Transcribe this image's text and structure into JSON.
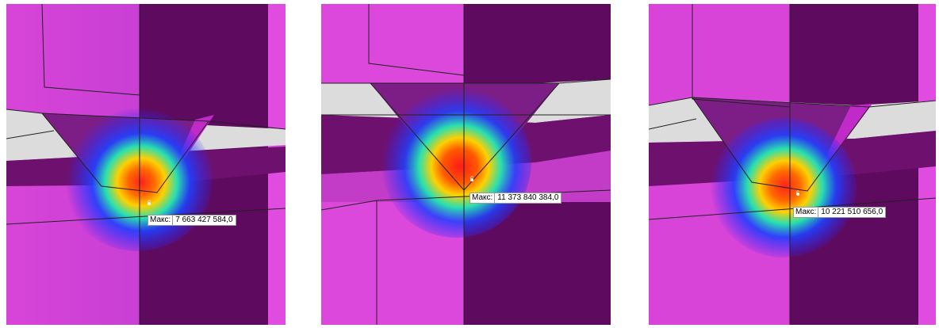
{
  "panels": [
    {
      "max_label": "Макс:",
      "max_value": "7 663 427 584,0"
    },
    {
      "max_label": "Макс:",
      "max_value": "11 373 840 384,0"
    },
    {
      "max_label": "Макс:",
      "max_value": "10 221 510 656,0"
    }
  ],
  "marker_glyph": "c",
  "colors": {
    "light_magenta": "#e04ce0",
    "dark_magenta": "#5e0a5e",
    "mid_magenta": "#7a157a",
    "grey": "#dcdcdc",
    "hot": "#ff2020",
    "warm": "#ffd000",
    "cool": "#28e0b0",
    "cold": "#2040ff"
  }
}
